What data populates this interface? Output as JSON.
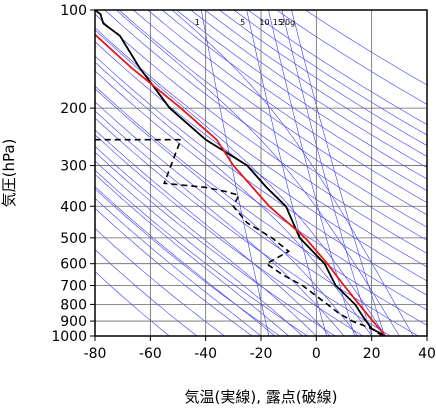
{
  "chart_data": {
    "type": "line",
    "x_label": "気温(実線), 露点(破線)",
    "y_label": "気圧(hPa)",
    "xlim": [
      -80,
      40
    ],
    "xticks": [
      -80,
      -60,
      -40,
      -20,
      0,
      20,
      40
    ],
    "ylim": [
      1000,
      100
    ],
    "yticks": [
      100,
      200,
      300,
      400,
      500,
      600,
      700,
      800,
      900,
      1000
    ],
    "log_y": true,
    "grid": true,
    "dry_adiabats": [
      220,
      230,
      240,
      250,
      260,
      270,
      280,
      290,
      300,
      310,
      320,
      330,
      340,
      350,
      360,
      370,
      380,
      390,
      400,
      410,
      420,
      430,
      440,
      450,
      460,
      470,
      480,
      500,
      520
    ],
    "moist_adiabats": [
      -20,
      -15,
      -10,
      -5,
      0,
      5,
      10,
      15,
      20,
      25,
      30,
      35
    ],
    "mixing_ratios": [
      1,
      5,
      10,
      15,
      20
    ],
    "mixing_ratio_labels": [
      "1",
      "5",
      "10",
      "15",
      "20g"
    ],
    "series": [
      {
        "color": "#000000",
        "dash": false,
        "x": [
          25,
          20,
          18,
          16,
          14,
          7,
          3,
          -6,
          -11,
          -18,
          -25,
          -40,
          -53,
          -64,
          -71,
          -77,
          -78,
          -80
        ],
        "y": [
          1000,
          950,
          900,
          850,
          800,
          700,
          600,
          500,
          400,
          350,
          300,
          250,
          200,
          150,
          120,
          110,
          103,
          100
        ]
      },
      {
        "color": "#e41a1c",
        "dash": false,
        "x": [
          25,
          18,
          10,
          4,
          -4,
          -17,
          -30,
          -36,
          -49,
          -67,
          -80
        ],
        "y": [
          1000,
          850,
          700,
          600,
          500,
          400,
          300,
          250,
          200,
          150,
          119
        ]
      },
      {
        "color": "#000000",
        "dash": true,
        "x": [
          24,
          20,
          13,
          8,
          4,
          -5,
          -12,
          -18,
          -10,
          -16,
          -25,
          -30,
          -28,
          -33,
          -40,
          -55,
          -49,
          -80
        ],
        "y": [
          1000,
          950,
          900,
          850,
          800,
          700,
          650,
          600,
          550,
          500,
          450,
          400,
          370,
          360,
          350,
          340,
          250,
          250
        ]
      }
    ]
  }
}
